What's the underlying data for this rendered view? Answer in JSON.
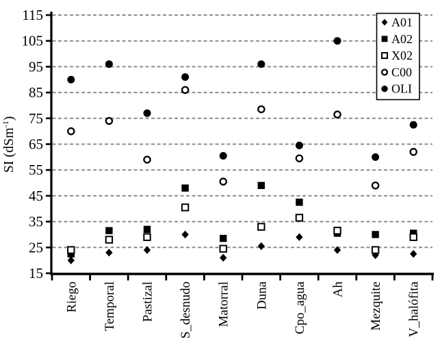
{
  "figure": {
    "ylabel": {
      "main": "SI (dSm",
      "sup": "-1",
      "close": ")"
    }
  },
  "colors": {
    "marker": "#000000",
    "axis": "#000000",
    "grid": "#8c8c8c",
    "background": "#ffffff",
    "text": "#000000",
    "legend_border": "#000000",
    "legend_fill": "#ffffff"
  },
  "chart_data": {
    "type": "scatter",
    "title": "",
    "xlabel": "",
    "ylabel": "SI (dSm-1)",
    "ylim": [
      15,
      115
    ],
    "yticks": [
      15,
      25,
      35,
      45,
      55,
      65,
      75,
      85,
      95,
      105,
      115
    ],
    "grid": "horizontal-dashed",
    "legend_position": "top-right",
    "categories": [
      "Riego",
      "Temporal",
      "Pastizal",
      "S_desnudo",
      "Matorral",
      "Duna",
      "Cpo_agua",
      "Ah",
      "Mezquite",
      "V_halófita"
    ],
    "series": [
      {
        "name": "A01",
        "marker": "filled-diamond",
        "values": [
          20,
          23,
          24,
          30,
          21,
          25.5,
          29,
          24,
          22,
          22.5
        ]
      },
      {
        "name": "A02",
        "marker": "filled-square",
        "values": [
          22.5,
          31.5,
          32,
          48,
          28.5,
          49,
          42.5,
          30.5,
          30,
          30.5
        ]
      },
      {
        "name": "X02",
        "marker": "open-square",
        "values": [
          24,
          28,
          29,
          40.5,
          24.5,
          33,
          36.5,
          31.5,
          24,
          29
        ]
      },
      {
        "name": "C00",
        "marker": "open-circle",
        "values": [
          70,
          74,
          59,
          86,
          50.5,
          78.5,
          59.5,
          76.5,
          49,
          62
        ]
      },
      {
        "name": "OLI",
        "marker": "filled-circle",
        "values": [
          90,
          96,
          77,
          91,
          60.5,
          96,
          64.5,
          105,
          60,
          72.5
        ]
      }
    ]
  }
}
